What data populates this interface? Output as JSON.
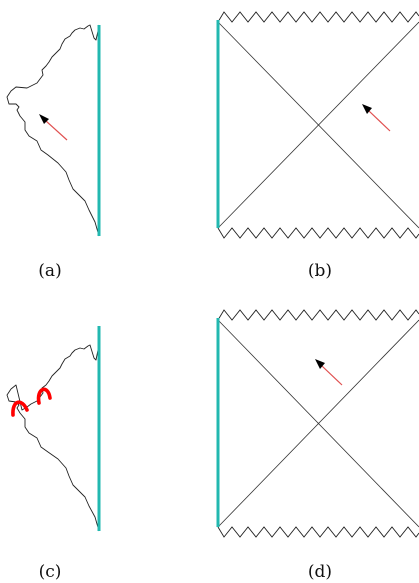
{
  "panels": [
    {
      "id": "a",
      "label": "(a)"
    },
    {
      "id": "b",
      "label": "(b)"
    },
    {
      "id": "c",
      "label": "(c)"
    },
    {
      "id": "d",
      "label": "(d)"
    }
  ],
  "colors": {
    "boundary": "#22b8b0",
    "arrow_tail": "#e05050",
    "arrow_head": "#000000",
    "highlight": "#ff0000",
    "lines": "#333333",
    "background": "#ffffff"
  },
  "icons": {
    "arrow": "red-tail-black-head-arrow",
    "singularity": "zigzag-line",
    "highlight": "red-bulge-arcs"
  }
}
